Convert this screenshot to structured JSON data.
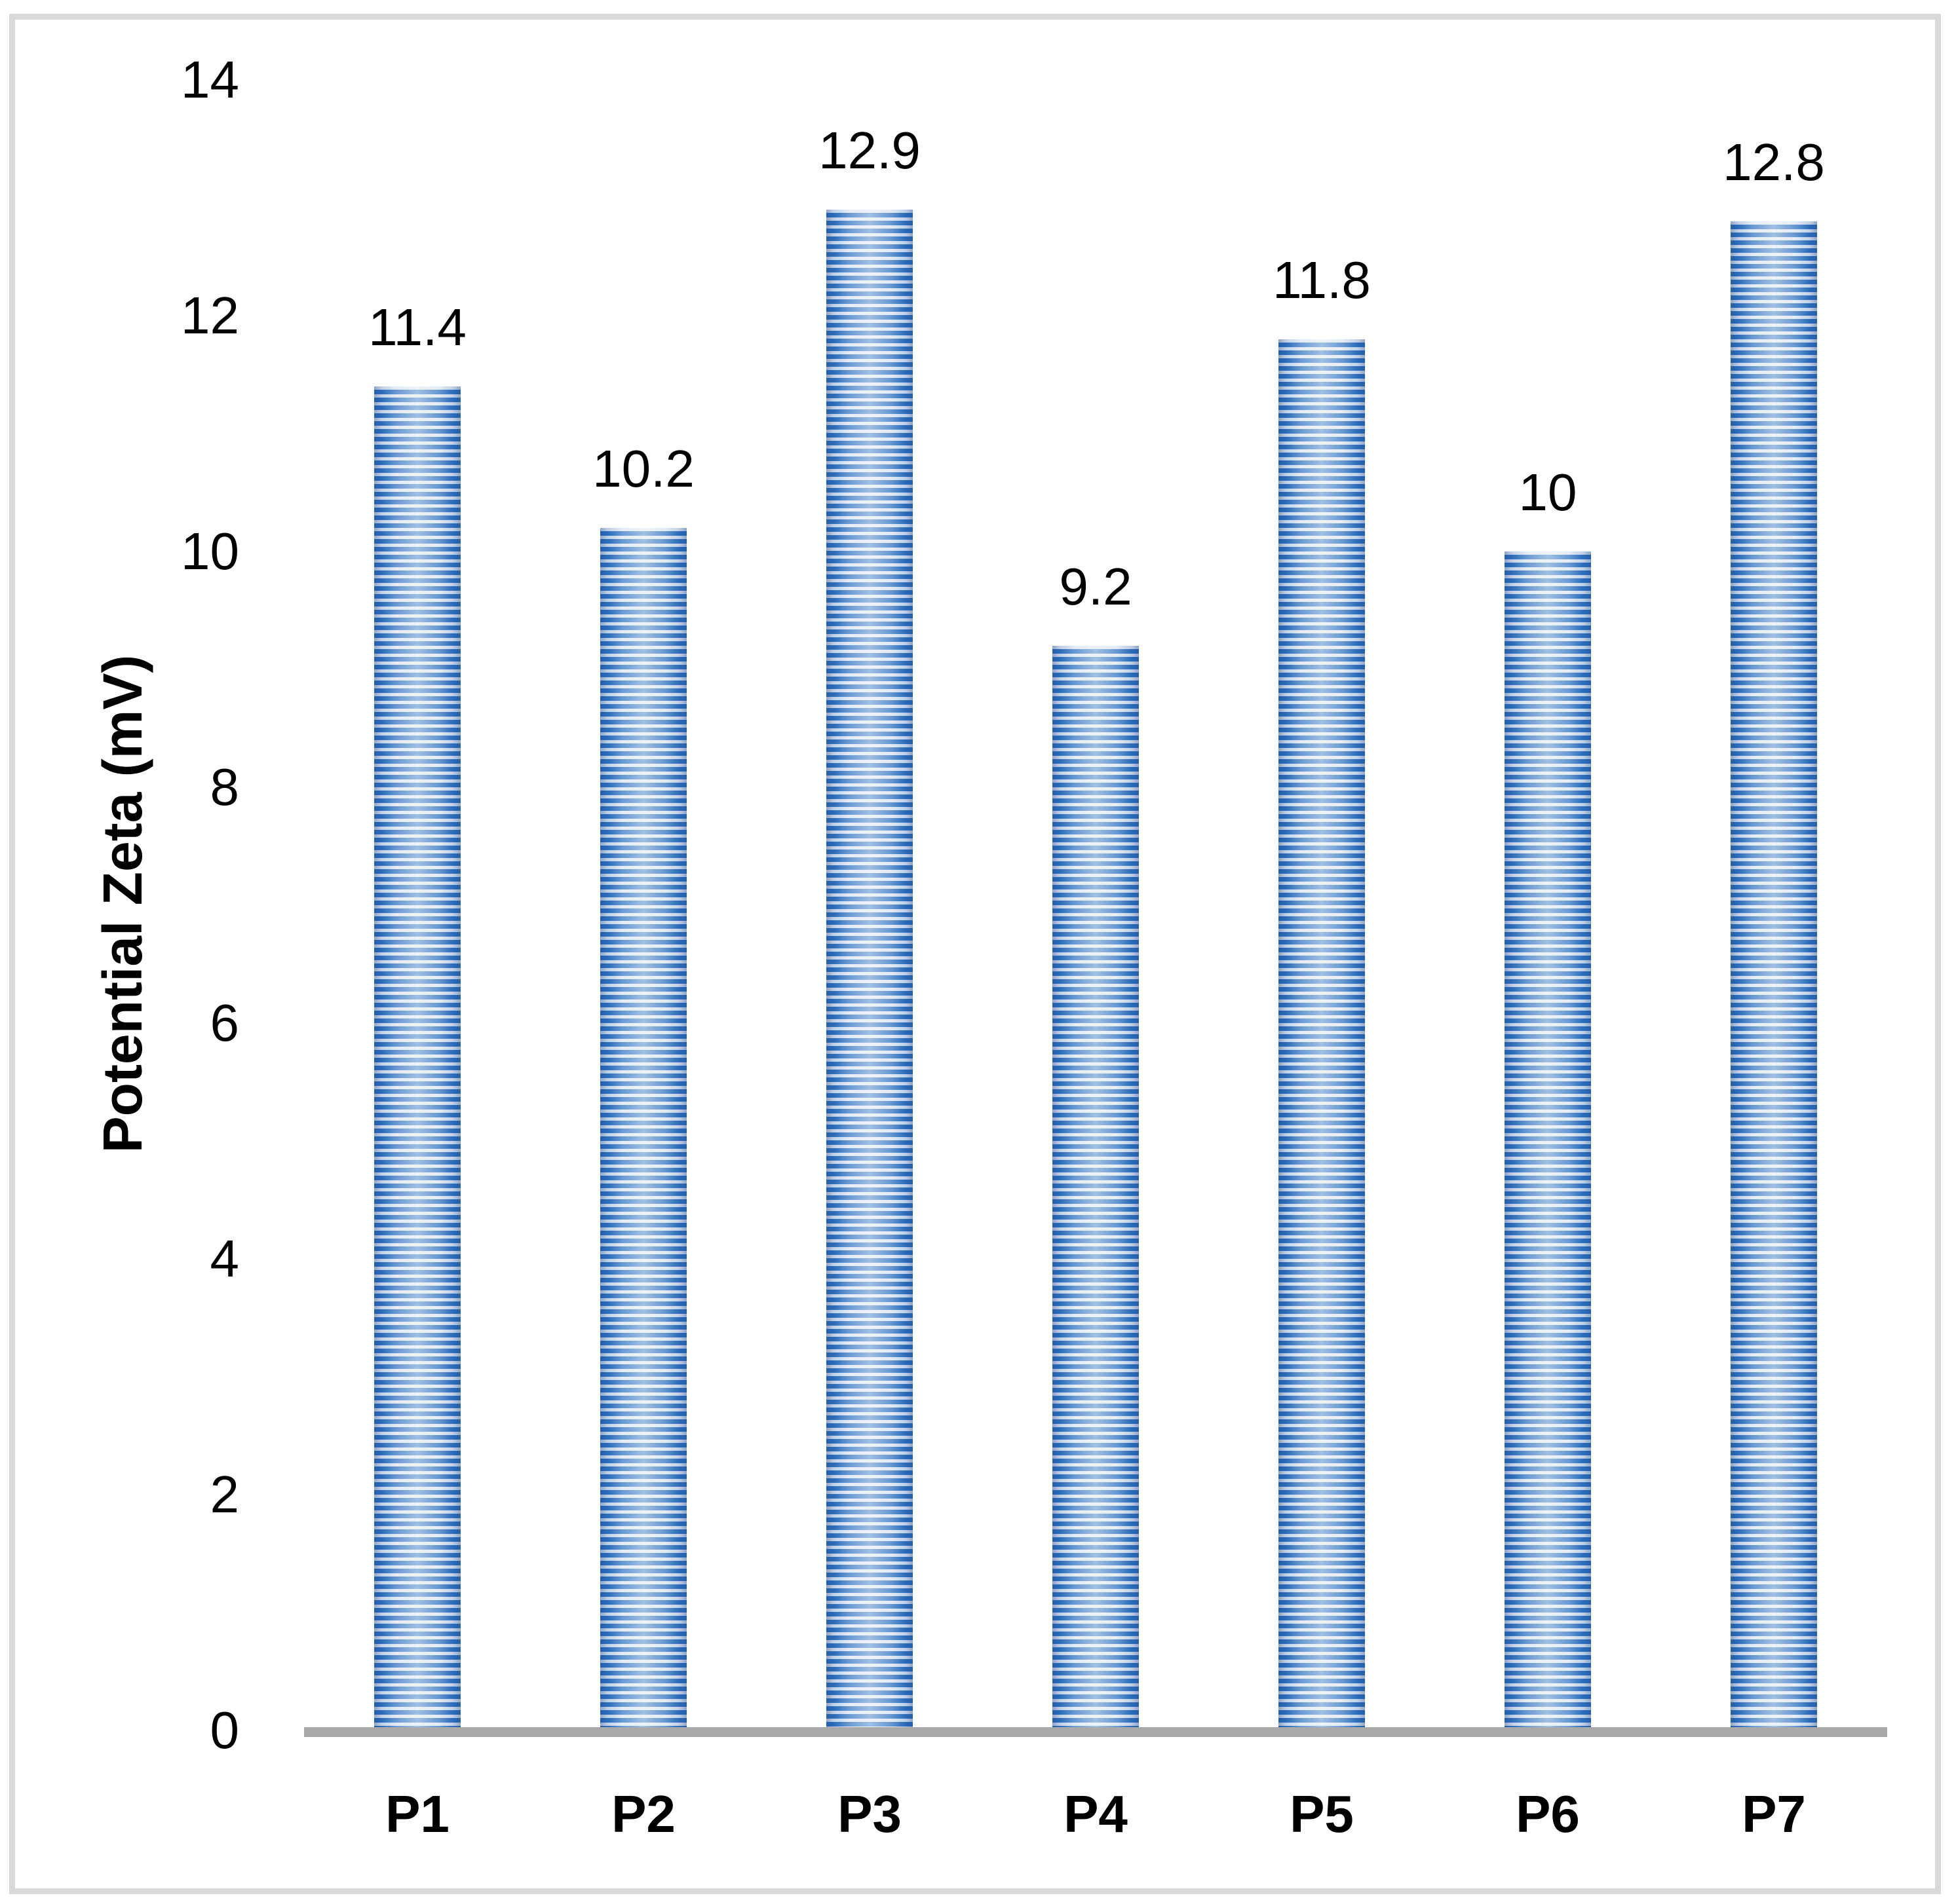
{
  "chart_data": {
    "type": "bar",
    "title": "",
    "categories": [
      "P1",
      "P2",
      "P3",
      "P4",
      "P5",
      "P6",
      "P7"
    ],
    "values": [
      11.4,
      10.2,
      12.9,
      9.2,
      11.8,
      10,
      12.8
    ],
    "data_labels": [
      "11.4",
      "10.2",
      "12.9",
      "9.2",
      "11.8",
      "10",
      "12.8"
    ],
    "xlabel": "",
    "ylabel": "Potential Zeta (mV)",
    "ylim": [
      0,
      14
    ],
    "yticks": [
      0,
      2,
      4,
      6,
      8,
      10,
      12,
      14
    ],
    "grid": false,
    "legend": false,
    "bar_pattern": "horizontal-stripes",
    "colors": {
      "bar_stripe_blue": "#2E72C2",
      "bar_stripe_light": "#D8E4F5",
      "axis_line": "#A9A9A9",
      "chart_border": "#D9D9D9",
      "text": "#000000",
      "background": "#FFFFFF"
    }
  }
}
